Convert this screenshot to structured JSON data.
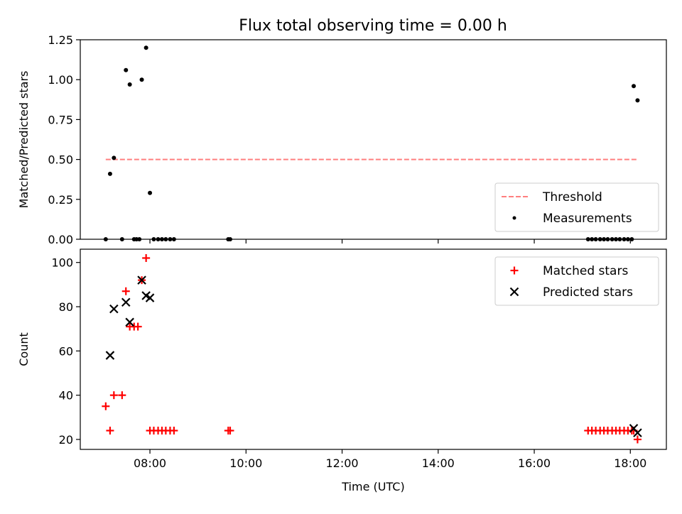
{
  "figure": {
    "title": "Flux total observing time = 0.00 h"
  },
  "chart_data": [
    {
      "type": "scatter",
      "panel": "top",
      "ylabel": "Matched/Predicted stars",
      "xlabel": "",
      "xlim": [
        6.55,
        18.75
      ],
      "ylim": [
        0,
        1.25
      ],
      "yticks": [
        0.0,
        0.25,
        0.5,
        0.75,
        1.0,
        1.25
      ],
      "ytick_labels": [
        "0.00",
        "0.25",
        "0.50",
        "0.75",
        "1.00",
        "1.25"
      ],
      "xticks": [
        8,
        10,
        12,
        14,
        16,
        18
      ],
      "xtick_labels": [
        "",
        "",
        "",
        "",
        "",
        ""
      ],
      "grid": false,
      "legend_position": "lower-right",
      "series": [
        {
          "name": "Threshold",
          "kind": "dashed-line",
          "color": "#ff7f7f",
          "x": [
            7.08,
            18.15
          ],
          "y": [
            0.5,
            0.5
          ]
        },
        {
          "name": "Measurements",
          "kind": "dot",
          "color": "#000000",
          "x": [
            7.08,
            7.17,
            7.25,
            7.42,
            7.5,
            7.58,
            7.67,
            7.72,
            7.78,
            7.83,
            7.92,
            8.0,
            8.08,
            8.17,
            8.25,
            8.33,
            8.42,
            8.5,
            9.63,
            9.67,
            17.12,
            17.2,
            17.28,
            17.37,
            17.45,
            17.53,
            17.62,
            17.7,
            17.78,
            17.87,
            17.95,
            18.03,
            18.07,
            18.15
          ],
          "y": [
            0.0,
            0.41,
            0.51,
            0.0,
            1.06,
            0.97,
            0.0,
            0.0,
            0.0,
            1.0,
            1.2,
            0.29,
            0.0,
            0.0,
            0.0,
            0.0,
            0.0,
            0.0,
            0.0,
            0.0,
            0.0,
            0.0,
            0.0,
            0.0,
            0.0,
            0.0,
            0.0,
            0.0,
            0.0,
            0.0,
            0.0,
            0.0,
            0.96,
            0.87
          ]
        }
      ]
    },
    {
      "type": "scatter",
      "panel": "bottom",
      "ylabel": "Count",
      "xlabel": "Time (UTC)",
      "xlim": [
        6.55,
        18.75
      ],
      "ylim": [
        15.5,
        106
      ],
      "yticks": [
        20,
        40,
        60,
        80,
        100
      ],
      "ytick_labels": [
        "20",
        "40",
        "60",
        "80",
        "100"
      ],
      "xticks": [
        8,
        10,
        12,
        14,
        16,
        18
      ],
      "xtick_labels": [
        "08:00",
        "10:00",
        "12:00",
        "14:00",
        "16:00",
        "18:00"
      ],
      "grid": false,
      "legend_position": "upper-right",
      "series": [
        {
          "name": "Matched stars",
          "kind": "plus",
          "color": "#ff0000",
          "x": [
            7.08,
            7.17,
            7.25,
            7.42,
            7.5,
            7.58,
            7.67,
            7.75,
            7.83,
            7.92,
            8.0,
            8.08,
            8.17,
            8.25,
            8.33,
            8.42,
            8.5,
            9.63,
            9.67,
            17.12,
            17.2,
            17.28,
            17.37,
            17.45,
            17.53,
            17.62,
            17.7,
            17.78,
            17.87,
            17.95,
            18.03,
            18.07,
            18.15
          ],
          "y": [
            35,
            24,
            40,
            40,
            87,
            71,
            71,
            71,
            92,
            102,
            24,
            24,
            24,
            24,
            24,
            24,
            24,
            24,
            24,
            24,
            24,
            24,
            24,
            24,
            24,
            24,
            24,
            24,
            24,
            24,
            24,
            24,
            20
          ]
        },
        {
          "name": "Predicted stars",
          "kind": "x",
          "color": "#000000",
          "x": [
            7.17,
            7.25,
            7.5,
            7.58,
            7.83,
            7.92,
            8.0,
            18.07,
            18.15
          ],
          "y": [
            58,
            79,
            82,
            73,
            92,
            85,
            84,
            25,
            23
          ]
        }
      ]
    }
  ]
}
